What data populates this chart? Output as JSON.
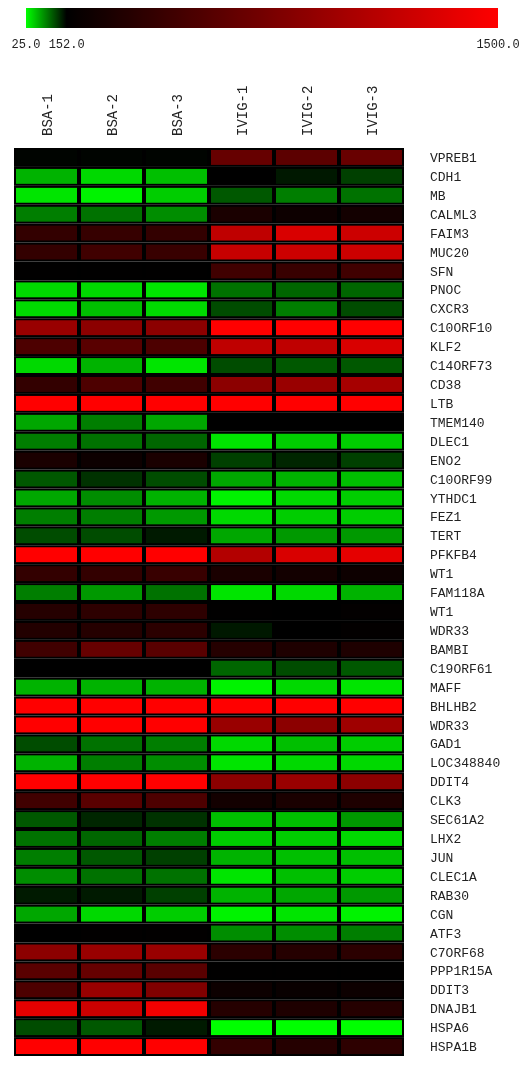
{
  "chart_data": {
    "type": "heatmap",
    "categories": [
      "BSA-1",
      "BSA-2",
      "BSA-3",
      "IVIG-1",
      "IVIG-2",
      "IVIG-3"
    ],
    "y_categories": [
      "VPREB1",
      "CDH1",
      "MB",
      "CALML3",
      "FAIM3",
      "MUC20",
      "SFN",
      "PNOC",
      "CXCR3",
      "C10ORF10",
      "KLF2",
      "C14ORF73",
      "CD38",
      "LTB",
      "TMEM140",
      "DLEC1",
      "ENO2",
      "C10ORF99",
      "YTHDC1",
      "FEZ1",
      "TERT",
      "PFKFB4",
      "WT1",
      "FAM118A",
      "WT1",
      "WDR33",
      "BAMBI",
      "C19ORF61",
      "MAFF",
      "BHLHB2",
      "WDR33",
      "GAD1",
      "LOC348840",
      "DDIT4",
      "CLK3",
      "SEC61A2",
      "LHX2",
      "JUN",
      "CLEC1A",
      "RAB30",
      "CGN",
      "ATF3",
      "C7ORF68",
      "PPP1R15A",
      "DDIT3",
      "DNAJB1",
      "HSPA6",
      "HSPA1B"
    ],
    "cells": [
      [
        150,
        150,
        150,
        690,
        640,
        700
      ],
      [
        63,
        44,
        57,
        152,
        140,
        120
      ],
      [
        38,
        31,
        50,
        108,
        89,
        95
      ],
      [
        89,
        95,
        82,
        290,
        220,
        250
      ],
      [
        420,
        440,
        420,
        1160,
        1300,
        1230
      ],
      [
        420,
        490,
        450,
        1200,
        1230,
        1230
      ],
      [
        155,
        155,
        155,
        490,
        450,
        490
      ],
      [
        44,
        44,
        38,
        95,
        101,
        101
      ],
      [
        44,
        57,
        44,
        114,
        89,
        114
      ],
      [
        960,
        890,
        890,
        1500,
        1500,
        1500
      ],
      [
        560,
        620,
        560,
        1160,
        1160,
        1300
      ],
      [
        44,
        63,
        38,
        114,
        108,
        108
      ],
      [
        420,
        560,
        490,
        890,
        960,
        1030
      ],
      [
        1500,
        1500,
        1500,
        1500,
        1500,
        1500
      ],
      [
        69,
        89,
        69,
        152,
        152,
        152
      ],
      [
        89,
        95,
        101,
        38,
        50,
        50
      ],
      [
        290,
        220,
        290,
        120,
        133,
        120
      ],
      [
        108,
        127,
        114,
        69,
        63,
        57
      ],
      [
        69,
        82,
        63,
        31,
        44,
        50
      ],
      [
        89,
        89,
        76,
        44,
        50,
        50
      ],
      [
        114,
        114,
        139,
        69,
        76,
        76
      ],
      [
        1500,
        1500,
        1500,
        1100,
        1300,
        1360
      ],
      [
        420,
        420,
        450,
        290,
        250,
        220
      ],
      [
        89,
        76,
        95,
        38,
        44,
        63
      ],
      [
        350,
        390,
        390,
        155,
        152,
        170
      ],
      [
        330,
        350,
        380,
        140,
        152,
        170
      ],
      [
        490,
        690,
        620,
        350,
        310,
        310
      ],
      [
        152,
        152,
        152,
        101,
        114,
        108
      ],
      [
        63,
        63,
        63,
        31,
        44,
        38
      ],
      [
        1500,
        1500,
        1500,
        1500,
        1500,
        1500
      ],
      [
        1500,
        1500,
        1500,
        960,
        890,
        990
      ],
      [
        114,
        95,
        89,
        44,
        57,
        50
      ],
      [
        63,
        89,
        82,
        38,
        44,
        44
      ],
      [
        1500,
        1500,
        1500,
        890,
        960,
        890
      ],
      [
        490,
        620,
        560,
        250,
        290,
        310
      ],
      [
        108,
        133,
        127,
        57,
        57,
        76
      ],
      [
        95,
        101,
        89,
        50,
        50,
        44
      ],
      [
        89,
        108,
        120,
        63,
        57,
        57
      ],
      [
        82,
        95,
        95,
        38,
        57,
        50
      ],
      [
        139,
        139,
        120,
        63,
        69,
        76
      ],
      [
        69,
        44,
        50,
        31,
        38,
        31
      ],
      [
        152,
        160,
        165,
        82,
        82,
        89
      ],
      [
        890,
        960,
        960,
        380,
        350,
        380
      ],
      [
        620,
        690,
        620,
        155,
        155,
        155
      ],
      [
        560,
        960,
        830,
        220,
        200,
        220
      ],
      [
        1360,
        1230,
        1430,
        350,
        310,
        350
      ],
      [
        114,
        108,
        139,
        25,
        25,
        25
      ],
      [
        1500,
        1500,
        1500,
        420,
        350,
        390
      ]
    ],
    "clim": [
      25,
      1500
    ],
    "cticks": [
      {
        "value": 25,
        "label": "25.0"
      },
      {
        "value": 152,
        "label": "152.0"
      },
      {
        "value": 1500,
        "label": "1500.0"
      }
    ]
  }
}
